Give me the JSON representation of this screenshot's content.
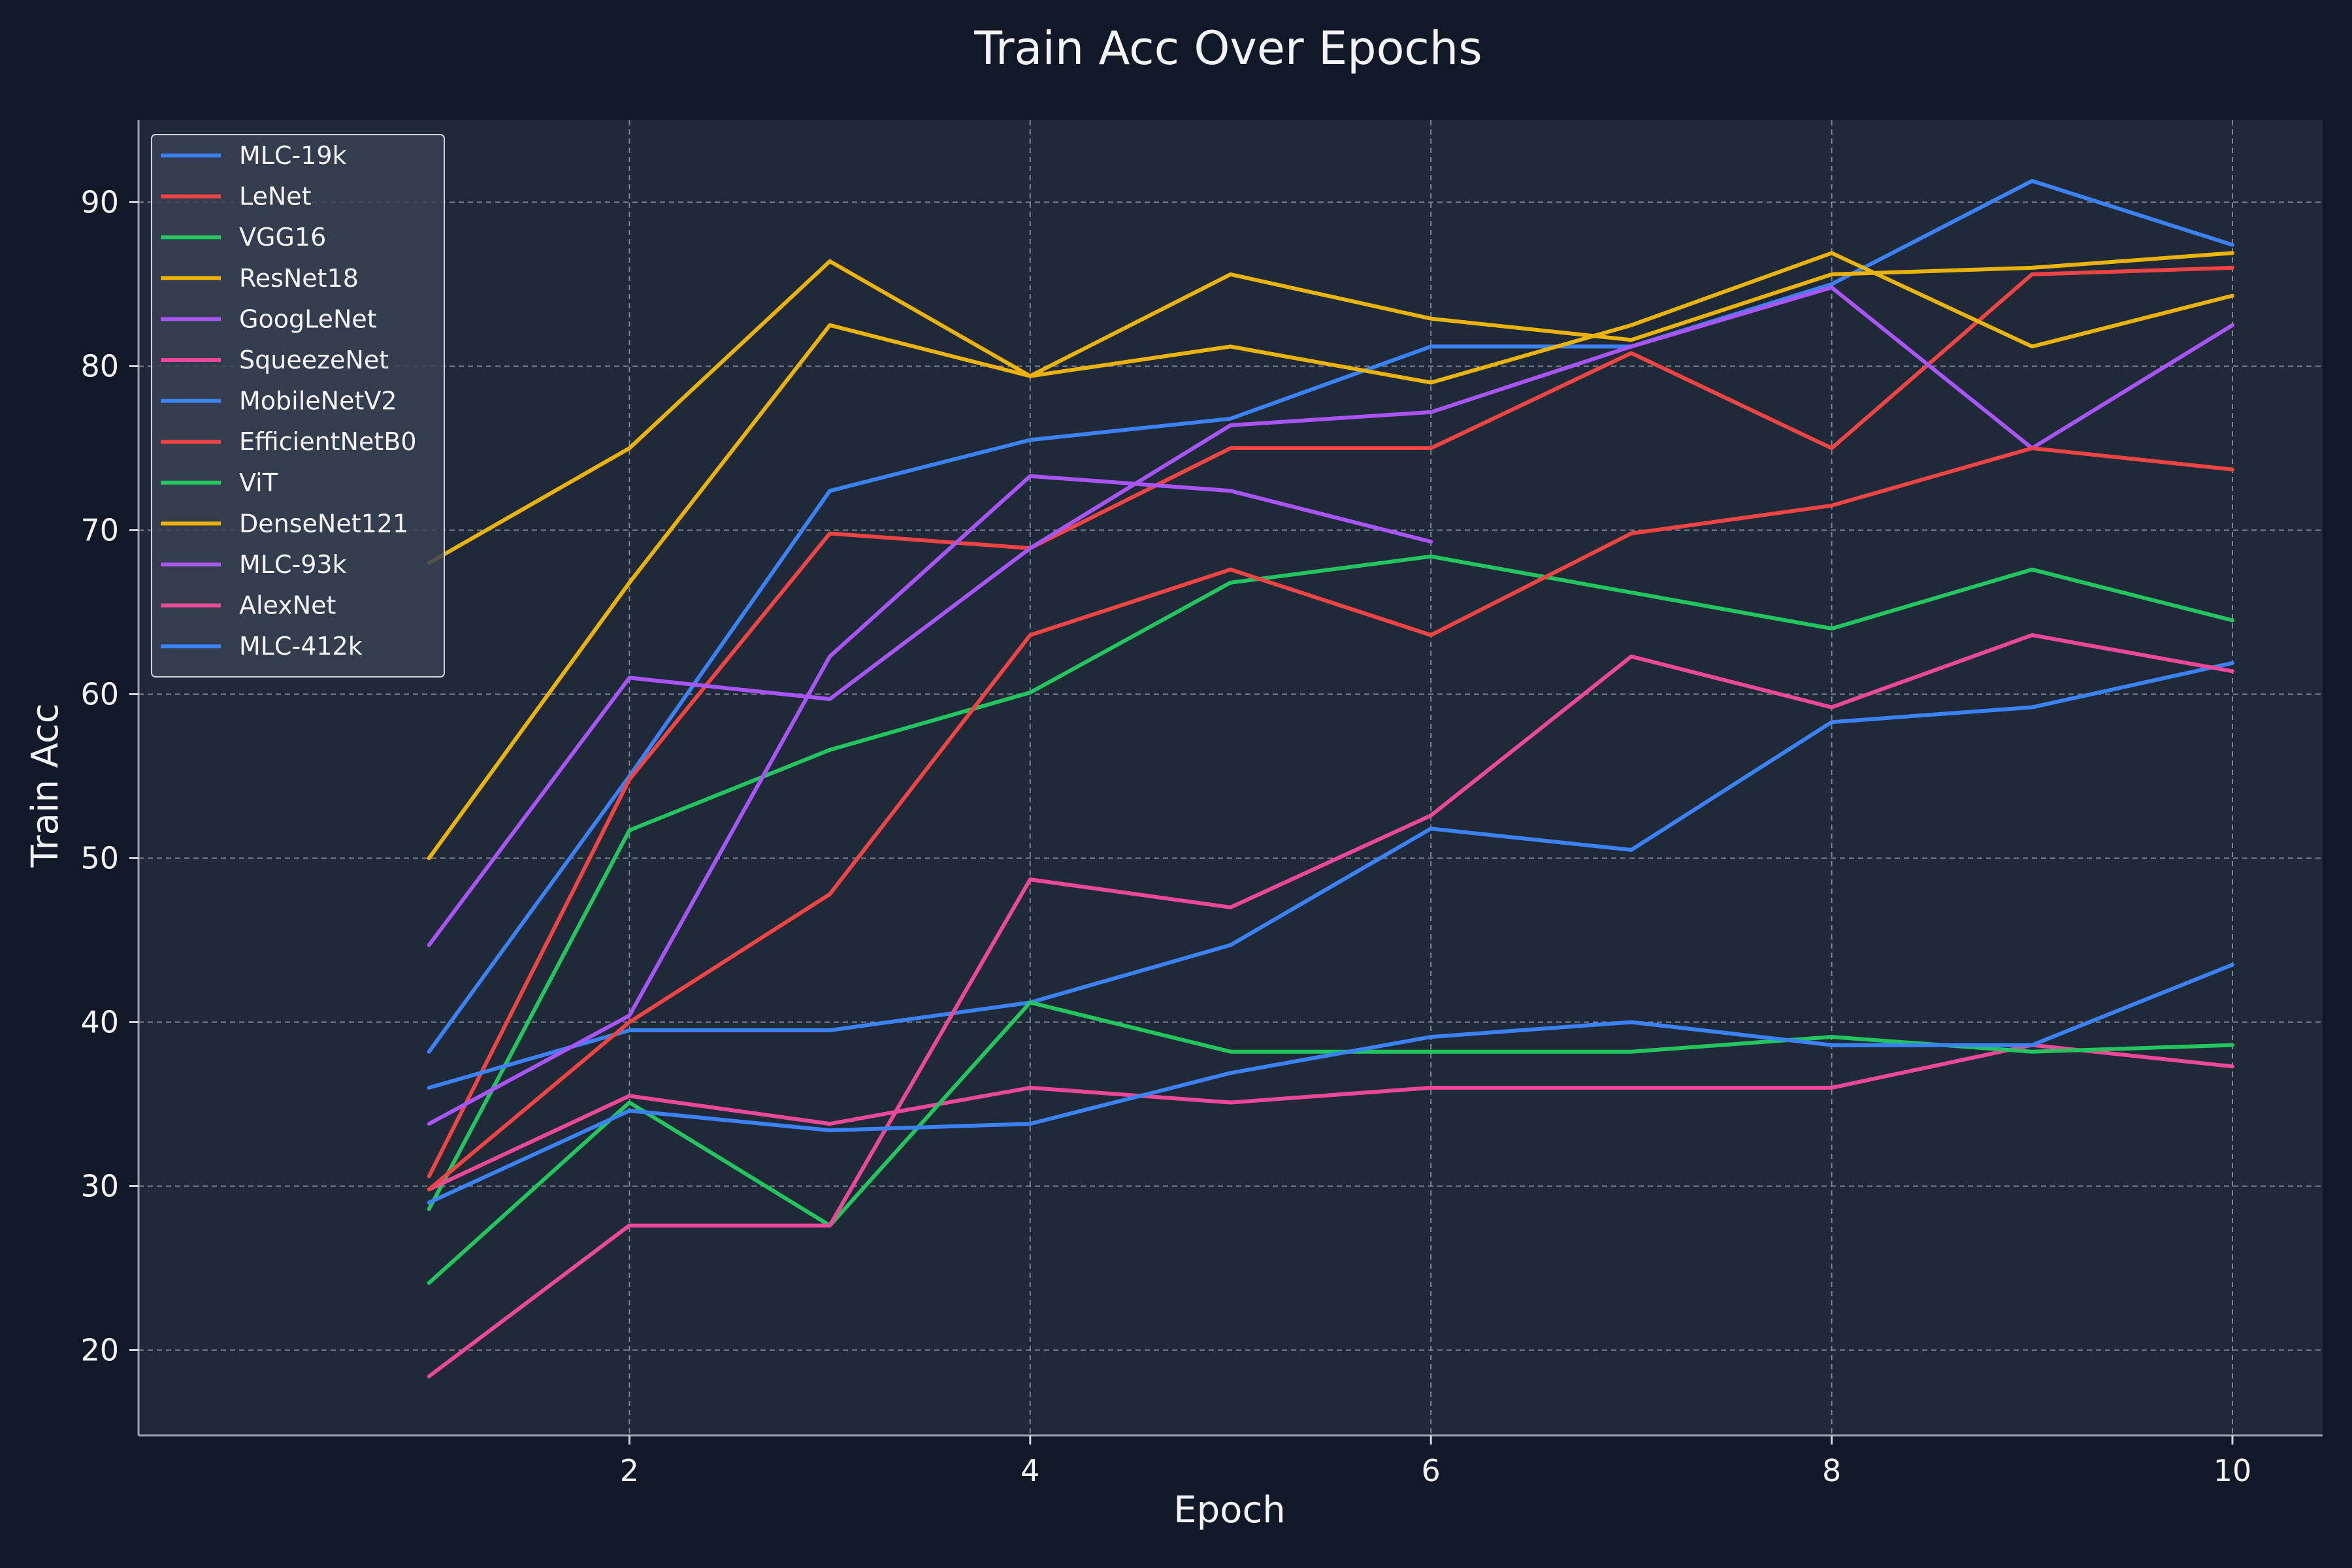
{
  "chart_data": {
    "type": "line",
    "title": "Train Acc Over Epochs",
    "xlabel": "Epoch",
    "ylabel": "Train Acc",
    "x": [
      1,
      2,
      3,
      4,
      5,
      6,
      7,
      8,
      9,
      10
    ],
    "xticks": [
      2,
      4,
      6,
      8,
      10
    ],
    "yticks": [
      20,
      30,
      40,
      50,
      60,
      70,
      80,
      90
    ],
    "xlim": [
      -0.45,
      10.45
    ],
    "ylim": [
      14.8,
      95.0
    ],
    "grid": true,
    "legend_position": "top-left",
    "colors": {
      "background": "#111827",
      "plot_background": "#1f2937",
      "text": "#f3f4f6",
      "grid": "#9ca3af"
    },
    "series": [
      {
        "name": "MLC-19k",
        "color": "#3b82f6",
        "values": [
          38.2,
          55.0,
          72.4,
          75.5,
          76.8,
          81.2,
          81.2,
          85.0,
          91.3,
          87.4
        ]
      },
      {
        "name": "LeNet",
        "color": "#ef4444",
        "values": [
          30.6,
          54.8,
          69.8,
          68.9,
          75.0,
          75.0,
          80.8,
          75.0,
          85.6,
          86.0
        ]
      },
      {
        "name": "VGG16",
        "color": "#22c55e",
        "values": [
          28.6,
          51.7,
          56.6,
          60.1,
          66.8,
          68.4,
          66.2,
          64.0,
          67.6,
          64.5
        ]
      },
      {
        "name": "ResNet18",
        "color": "#eab308",
        "values": [
          50.0,
          66.8,
          82.5,
          79.4,
          81.2,
          79.0,
          82.5,
          86.9,
          81.2,
          84.3
        ]
      },
      {
        "name": "GoogLeNet",
        "color": "#a855f7",
        "values": [
          44.7,
          61.0,
          59.7,
          68.9,
          76.4,
          77.2,
          81.2,
          84.8,
          75.0,
          82.5
        ]
      },
      {
        "name": "SqueezeNet",
        "color": "#ec4899",
        "values": [
          29.8,
          35.5,
          33.8,
          36.0,
          35.1,
          36.0,
          36.0,
          36.0,
          38.6,
          37.3
        ]
      },
      {
        "name": "MobileNetV2",
        "color": "#3b82f6",
        "values": [
          36.0,
          39.5,
          39.5,
          41.2,
          44.7,
          51.8,
          50.5,
          58.3,
          59.2,
          61.9
        ]
      },
      {
        "name": "EfficientNetB0",
        "color": "#ef4444",
        "values": [
          29.8,
          40.0,
          47.8,
          63.6,
          67.6,
          63.6,
          69.8,
          71.5,
          75.0,
          73.7
        ]
      },
      {
        "name": "ViT",
        "color": "#22c55e",
        "values": [
          24.1,
          35.1,
          27.6,
          41.2,
          38.2,
          38.2,
          38.2,
          39.1,
          38.2,
          38.6
        ]
      },
      {
        "name": "DenseNet121",
        "color": "#eab308",
        "values": [
          68.0,
          75.0,
          86.4,
          79.4,
          85.6,
          82.9,
          81.6,
          85.6,
          86.0,
          86.9
        ]
      },
      {
        "name": "MLC-93k",
        "color": "#a855f7",
        "values": [
          33.8,
          40.4,
          62.3,
          73.3,
          72.4,
          69.3,
          null,
          null,
          null,
          null
        ]
      },
      {
        "name": "AlexNet",
        "color": "#ec4899",
        "values": [
          18.4,
          27.6,
          27.6,
          48.7,
          47.0,
          52.6,
          62.3,
          59.2,
          63.6,
          61.4
        ]
      },
      {
        "name": "MLC-412k",
        "color": "#3b82f6",
        "values": [
          29.0,
          34.6,
          33.4,
          33.8,
          36.9,
          39.1,
          40.0,
          38.6,
          38.6,
          43.5
        ]
      }
    ]
  }
}
